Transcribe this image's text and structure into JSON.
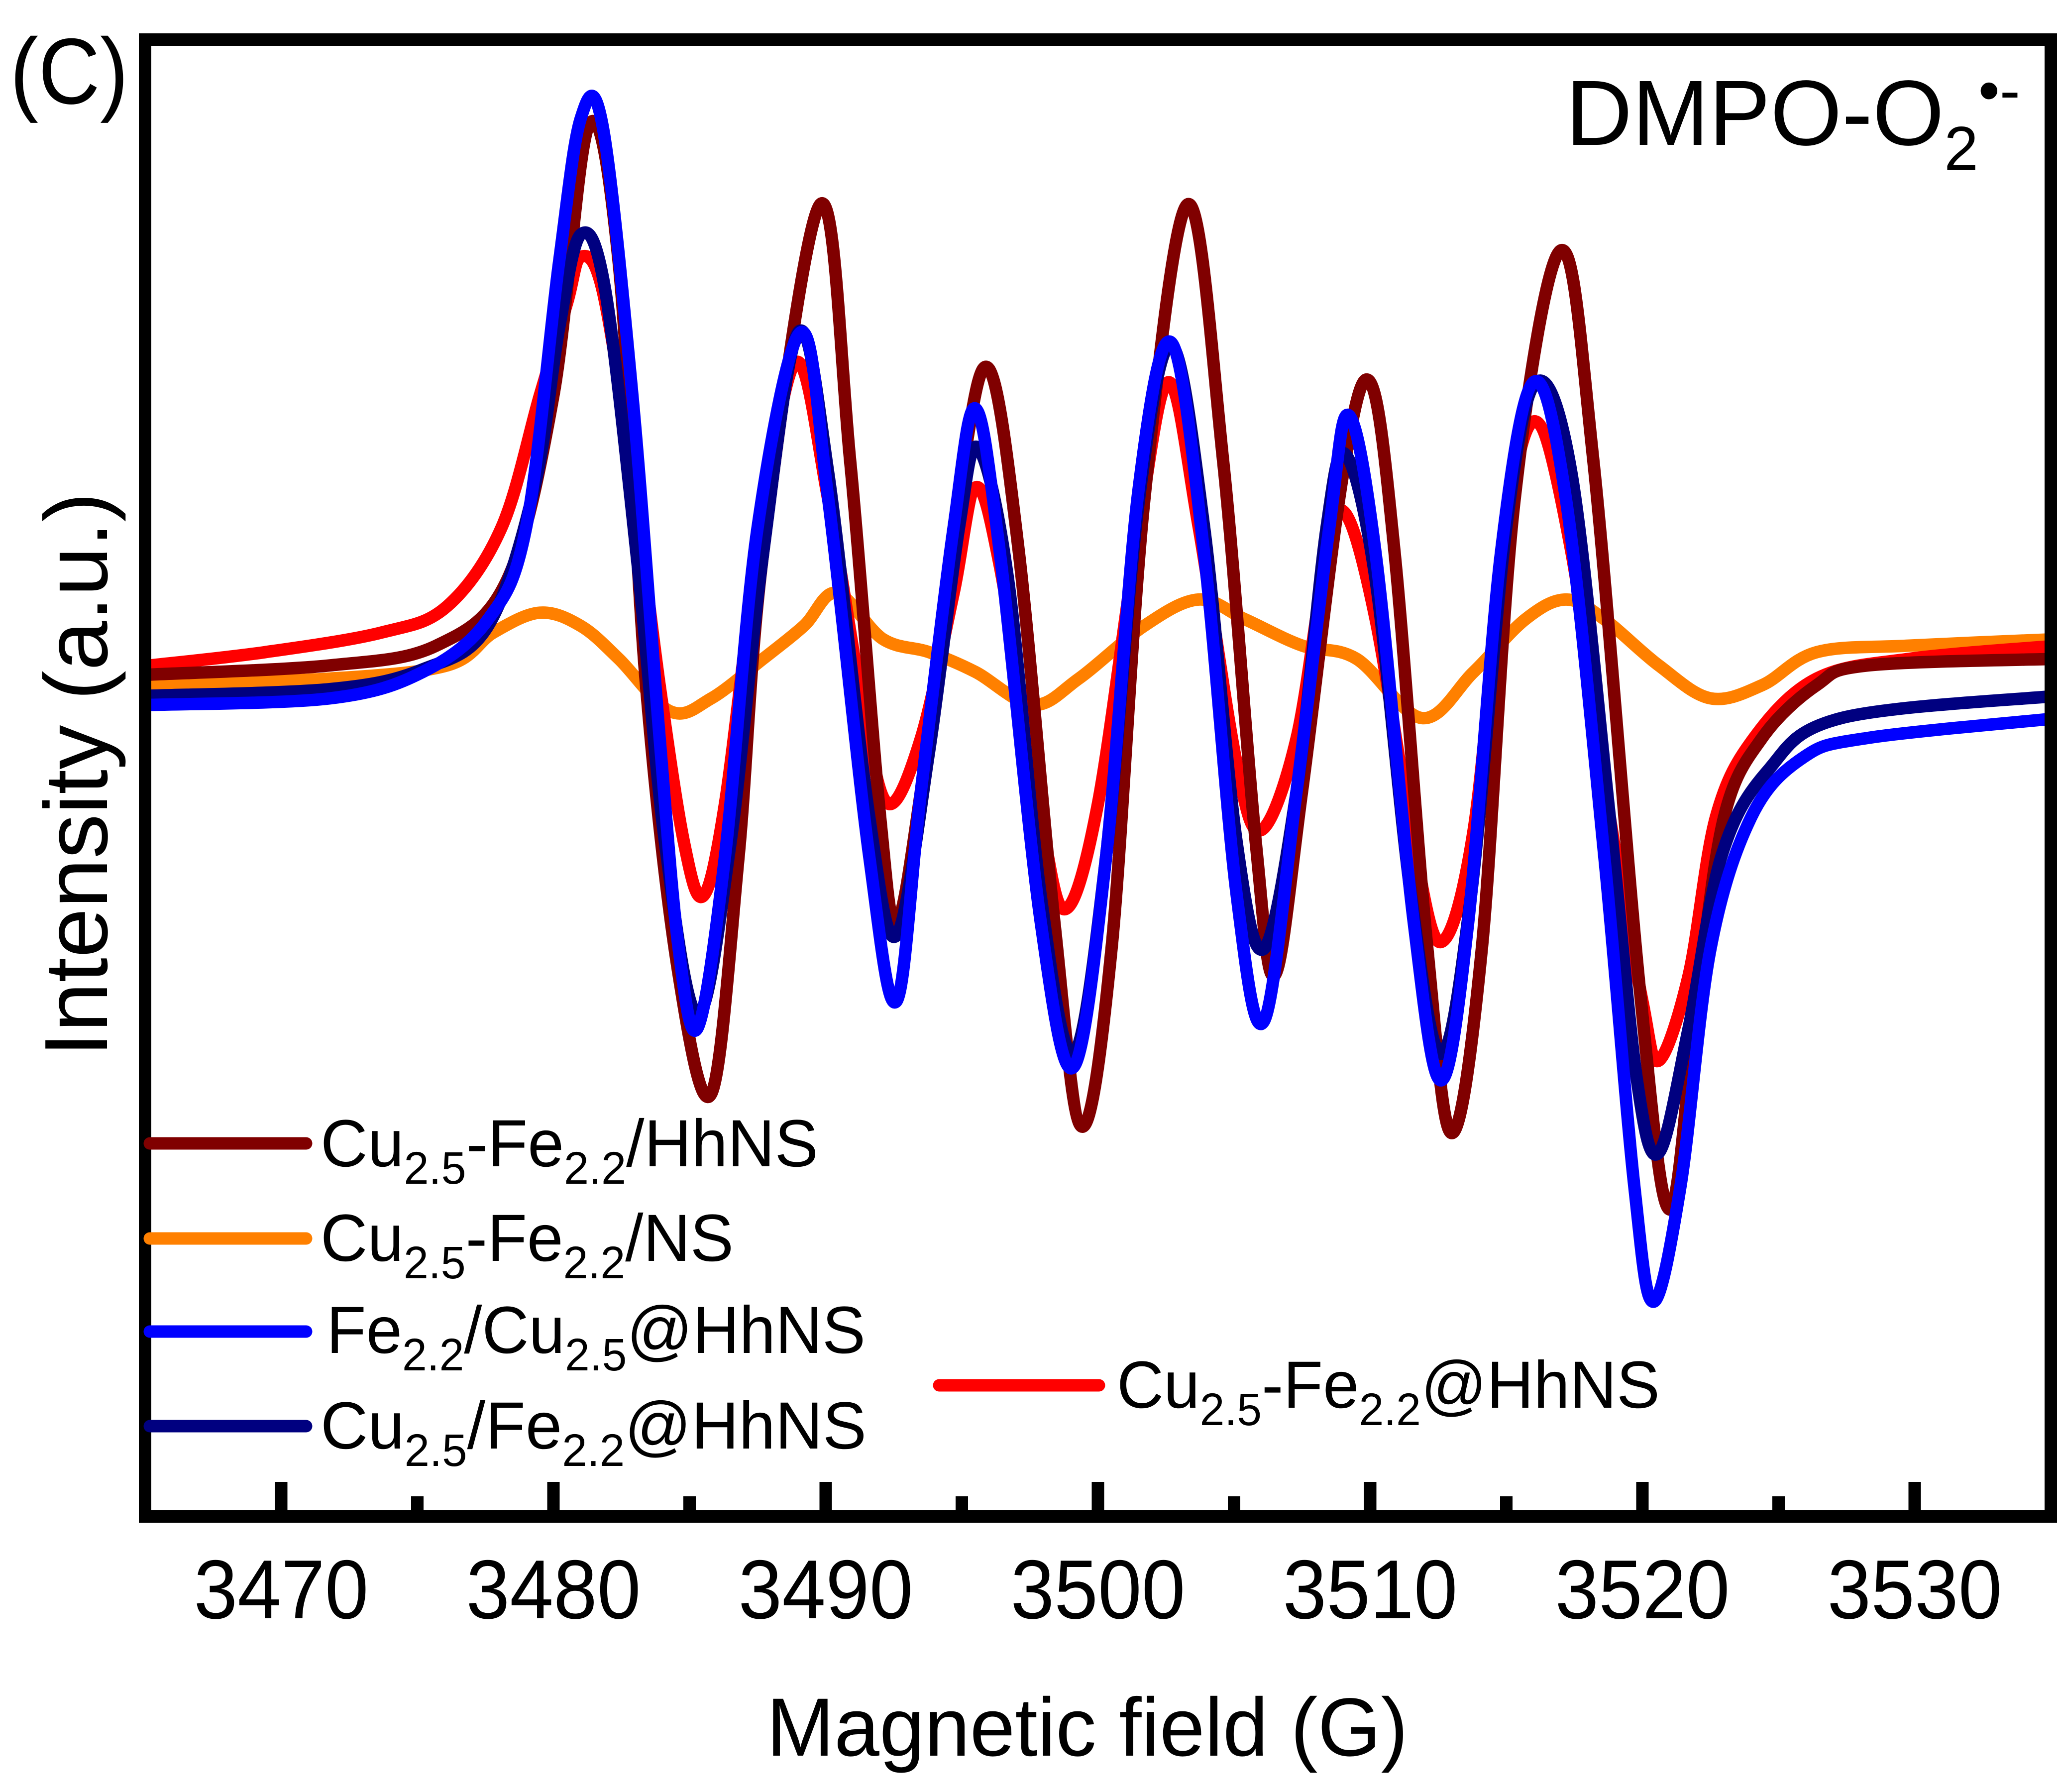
{
  "chart_data": {
    "type": "line",
    "panel_label": "(C)",
    "annotation": {
      "segments": [
        {
          "text": "DMPO-O",
          "style": "normal"
        },
        {
          "text": "2",
          "style": "sub"
        },
        {
          "text": "•-",
          "style": "sup"
        }
      ]
    },
    "xlabel": "Magnetic field (G)",
    "ylabel": "Intensity (a.u.)",
    "xlim": [
      3465,
      3535
    ],
    "ylim": [
      -6.31,
      4.9
    ],
    "xticks": [
      3470,
      3480,
      3490,
      3500,
      3510,
      3520,
      3530
    ],
    "xtick_labels": [
      "3470",
      "3480",
      "3490",
      "3500",
      "3510",
      "3520",
      "3530"
    ],
    "xminor_ticks": [
      3475,
      3485,
      3495,
      3505,
      3515,
      3525
    ],
    "grid": false,
    "legend_placement": "bottom-left",
    "series": [
      {
        "name": "Cu2.5-Fe2.2/HhNS",
        "color": "#800000",
        "points": [
          [
            3465.2,
            0.08
          ],
          [
            3471.8,
            0.15
          ],
          [
            3475.7,
            0.3
          ],
          [
            3478.3,
            0.8
          ],
          [
            3480.0,
            2.2
          ],
          [
            3481.3,
            4.25
          ],
          [
            3482.4,
            3.2
          ],
          [
            3483.4,
            0
          ],
          [
            3484.6,
            -2.2
          ],
          [
            3485.8,
            -3.1
          ],
          [
            3486.8,
            -1.3
          ],
          [
            3487.7,
            1.0
          ],
          [
            3489.8,
            3.65
          ],
          [
            3490.9,
            1.7
          ],
          [
            3492.0,
            -1.0
          ],
          [
            3492.6,
            -1.8
          ],
          [
            3493.5,
            -0.8
          ],
          [
            3495.0,
            1.6
          ],
          [
            3496.0,
            2.4
          ],
          [
            3497.1,
            1.0
          ],
          [
            3498.4,
            -1.8
          ],
          [
            3499.4,
            -3.35
          ],
          [
            3500.5,
            -2.0
          ],
          [
            3501.7,
            1.4
          ],
          [
            3503.3,
            3.65
          ],
          [
            3504.6,
            1.7
          ],
          [
            3505.8,
            -1.2
          ],
          [
            3506.5,
            -2.2
          ],
          [
            3507.5,
            -0.8
          ],
          [
            3509.0,
            1.6
          ],
          [
            3510.0,
            2.3
          ],
          [
            3510.9,
            1.0
          ],
          [
            3512.1,
            -2.0
          ],
          [
            3513.0,
            -3.4
          ],
          [
            3514.1,
            -2.0
          ],
          [
            3515.3,
            1.4
          ],
          [
            3517.0,
            3.3
          ],
          [
            3518.2,
            1.7
          ],
          [
            3519.9,
            -2.3
          ],
          [
            3521.0,
            -3.98
          ],
          [
            3522.0,
            -2.4
          ],
          [
            3523.0,
            -1.0
          ],
          [
            3524.4,
            -0.4
          ],
          [
            3526.4,
            0.0
          ],
          [
            3528.3,
            0.15
          ],
          [
            3535.3,
            0.2
          ]
        ]
      },
      {
        "name": "Cu2.5-Fe2.2/NS",
        "color": "#FF8000",
        "points": [
          [
            3465.2,
            0
          ],
          [
            3471.8,
            0.05
          ],
          [
            3476.1,
            0.15
          ],
          [
            3477.8,
            0.4
          ],
          [
            3479.5,
            0.55
          ],
          [
            3481.0,
            0.45
          ],
          [
            3482.4,
            0.2
          ],
          [
            3484.3,
            -0.2
          ],
          [
            3485.8,
            -0.1
          ],
          [
            3487.7,
            0.2
          ],
          [
            3489.2,
            0.45
          ],
          [
            3490.4,
            0.7
          ],
          [
            3492.1,
            0.35
          ],
          [
            3493.8,
            0.25
          ],
          [
            3495.5,
            0.1
          ],
          [
            3497.6,
            -0.15
          ],
          [
            3499.3,
            0.05
          ],
          [
            3501.7,
            0.45
          ],
          [
            3503.7,
            0.65
          ],
          [
            3505.4,
            0.5
          ],
          [
            3507.5,
            0.3
          ],
          [
            3509.5,
            0.2
          ],
          [
            3511.9,
            -0.25
          ],
          [
            3513.8,
            0.1
          ],
          [
            3515.7,
            0.5
          ],
          [
            3517.2,
            0.65
          ],
          [
            3518.6,
            0.5
          ],
          [
            3520.6,
            0.15
          ],
          [
            3522.5,
            -0.1
          ],
          [
            3524.4,
            0
          ],
          [
            3526.4,
            0.25
          ],
          [
            3529.8,
            0.3
          ],
          [
            3535.3,
            0.35
          ]
        ]
      },
      {
        "name": "Fe2.2/Cu2.5@HhNS",
        "color": "#0000FF",
        "points": [
          [
            3465.2,
            -0.15
          ],
          [
            3471.8,
            -0.1
          ],
          [
            3475.2,
            0.1
          ],
          [
            3477.6,
            0.5
          ],
          [
            3479.0,
            1.2
          ],
          [
            3480.2,
            3.2
          ],
          [
            3481.0,
            4.3
          ],
          [
            3481.8,
            4.25
          ],
          [
            3482.9,
            2.2
          ],
          [
            3483.9,
            -0.4
          ],
          [
            3484.6,
            -2.0
          ],
          [
            3485.3,
            -2.6
          ],
          [
            3486.3,
            -1.3
          ],
          [
            3487.5,
            1.2
          ],
          [
            3489.1,
            2.68
          ],
          [
            3490.1,
            1.4
          ],
          [
            3491.6,
            -1.3
          ],
          [
            3492.6,
            -2.4
          ],
          [
            3493.5,
            -0.8
          ],
          [
            3494.7,
            1.2
          ],
          [
            3495.5,
            2.1
          ],
          [
            3496.4,
            1.0
          ],
          [
            3497.9,
            -1.8
          ],
          [
            3499.1,
            -2.9
          ],
          [
            3500.3,
            -1.3
          ],
          [
            3501.5,
            1.5
          ],
          [
            3502.7,
            2.6
          ],
          [
            3503.9,
            1.0
          ],
          [
            3505.1,
            -1.6
          ],
          [
            3506.1,
            -2.55
          ],
          [
            3507.3,
            -0.8
          ],
          [
            3508.5,
            1.2
          ],
          [
            3509.2,
            2.05
          ],
          [
            3510.2,
            1.0
          ],
          [
            3511.6,
            -1.8
          ],
          [
            3512.6,
            -3.0
          ],
          [
            3513.6,
            -1.8
          ],
          [
            3514.8,
            1.0
          ],
          [
            3516.0,
            2.3
          ],
          [
            3517.2,
            1.4
          ],
          [
            3518.6,
            -1.3
          ],
          [
            3519.7,
            -3.8
          ],
          [
            3520.4,
            -4.68
          ],
          [
            3521.4,
            -3.8
          ],
          [
            3522.5,
            -2.0
          ],
          [
            3524.0,
            -1.0
          ],
          [
            3525.9,
            -0.55
          ],
          [
            3528.3,
            -0.4
          ],
          [
            3535.3,
            -0.25
          ]
        ]
      },
      {
        "name": "Cu2.5/Fe2.2@HhNS",
        "color": "#000080",
        "points": [
          [
            3465.2,
            -0.08
          ],
          [
            3471.8,
            -0.03
          ],
          [
            3475.2,
            0.12
          ],
          [
            3477.6,
            0.45
          ],
          [
            3479.3,
            1.5
          ],
          [
            3480.2,
            2.7
          ],
          [
            3481.0,
            3.42
          ],
          [
            3481.9,
            3.0
          ],
          [
            3483.1,
            0.9
          ],
          [
            3484.1,
            -1.2
          ],
          [
            3485.3,
            -2.5
          ],
          [
            3486.5,
            -1.2
          ],
          [
            3487.7,
            1.0
          ],
          [
            3489.0,
            2.68
          ],
          [
            3490.1,
            1.6
          ],
          [
            3491.6,
            -1.0
          ],
          [
            3492.6,
            -1.9
          ],
          [
            3493.8,
            -0.5
          ],
          [
            3494.9,
            1.2
          ],
          [
            3495.6,
            1.8
          ],
          [
            3496.7,
            0.8
          ],
          [
            3497.9,
            -1.6
          ],
          [
            3499.1,
            -2.8
          ],
          [
            3500.3,
            -1.3
          ],
          [
            3501.5,
            1.4
          ],
          [
            3502.7,
            2.58
          ],
          [
            3503.9,
            1.2
          ],
          [
            3505.1,
            -1.2
          ],
          [
            3506.1,
            -2.0
          ],
          [
            3507.3,
            -0.8
          ],
          [
            3508.4,
            1.2
          ],
          [
            3509.1,
            1.75
          ],
          [
            3510.2,
            0.8
          ],
          [
            3511.5,
            -1.6
          ],
          [
            3512.6,
            -2.8
          ],
          [
            3513.7,
            -1.6
          ],
          [
            3515.0,
            1.2
          ],
          [
            3516.1,
            2.3
          ],
          [
            3517.4,
            1.6
          ],
          [
            3518.8,
            -1.0
          ],
          [
            3519.8,
            -3.0
          ],
          [
            3520.6,
            -3.55
          ],
          [
            3521.7,
            -2.6
          ],
          [
            3522.9,
            -1.3
          ],
          [
            3524.6,
            -0.65
          ],
          [
            3527.3,
            -0.25
          ],
          [
            3535.3,
            -0.08
          ]
        ]
      },
      {
        "name": "Cu2.5-Fe2.2@HhNS",
        "color": "#FF0000",
        "points": [
          [
            3465.2,
            0.15
          ],
          [
            3469.4,
            0.25
          ],
          [
            3473.7,
            0.4
          ],
          [
            3476.1,
            0.6
          ],
          [
            3478.1,
            1.2
          ],
          [
            3479.5,
            2.2
          ],
          [
            3480.5,
            2.9
          ],
          [
            3481.0,
            3.25
          ],
          [
            3481.8,
            3.0
          ],
          [
            3482.9,
            1.6
          ],
          [
            3483.9,
            0
          ],
          [
            3484.8,
            -1.2
          ],
          [
            3485.5,
            -1.6
          ],
          [
            3486.3,
            -0.9
          ],
          [
            3487.5,
            1.0
          ],
          [
            3488.9,
            2.45
          ],
          [
            3490.1,
            1.4
          ],
          [
            3491.4,
            -0.2
          ],
          [
            3492.3,
            -0.9
          ],
          [
            3493.5,
            -0.4
          ],
          [
            3494.7,
            0.7
          ],
          [
            3495.5,
            1.5
          ],
          [
            3496.4,
            0.9
          ],
          [
            3497.9,
            -1.0
          ],
          [
            3498.8,
            -1.7
          ],
          [
            3500.0,
            -0.9
          ],
          [
            3501.5,
            1.2
          ],
          [
            3502.6,
            2.3
          ],
          [
            3503.7,
            1.2
          ],
          [
            3505.1,
            -0.6
          ],
          [
            3506.0,
            -1.1
          ],
          [
            3507.3,
            -0.4
          ],
          [
            3508.4,
            1.0
          ],
          [
            3509.1,
            1.3
          ],
          [
            3510.2,
            0.5
          ],
          [
            3511.6,
            -1.2
          ],
          [
            3512.6,
            -1.95
          ],
          [
            3513.8,
            -1.1
          ],
          [
            3515.0,
            1.2
          ],
          [
            3516.1,
            2.0
          ],
          [
            3517.4,
            1.0
          ],
          [
            3518.8,
            -1.0
          ],
          [
            3520.0,
            -2.4
          ],
          [
            3520.6,
            -2.85
          ],
          [
            3521.7,
            -2.2
          ],
          [
            3522.7,
            -1.0
          ],
          [
            3524.1,
            -0.4
          ],
          [
            3526.4,
            0.05
          ],
          [
            3529.8,
            0.2
          ],
          [
            3535.3,
            0.3
          ]
        ]
      }
    ]
  }
}
